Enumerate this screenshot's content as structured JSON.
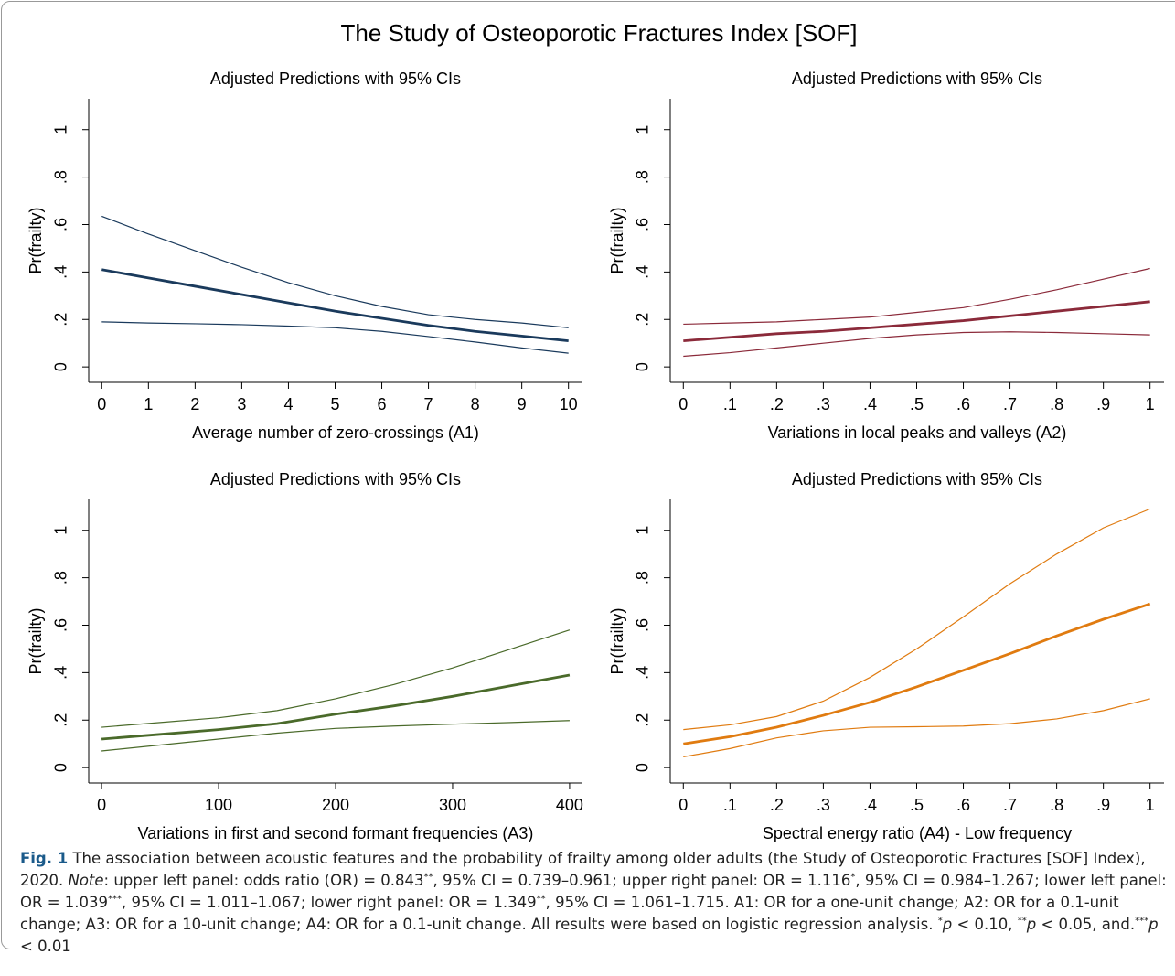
{
  "figure_title": "The Study of Osteoporotic Fractures Index [SOF]",
  "chart_data": [
    {
      "type": "line",
      "title": "Adjusted Predictions with 95% CIs",
      "x_label": "Average number of zero-crossings (A1)",
      "y_label": "Pr(frailty)",
      "x": [
        0,
        1,
        2,
        3,
        4,
        5,
        6,
        7,
        8,
        9,
        10
      ],
      "series": [
        {
          "color": "#1a3a5c",
          "line_width": 1.2,
          "values": [
            0.635,
            0.56,
            0.49,
            0.42,
            0.355,
            0.3,
            0.255,
            0.22,
            0.2,
            0.185,
            0.165
          ]
        },
        {
          "color": "#1a3a5c",
          "line_width": 2.8,
          "values": [
            0.41,
            0.375,
            0.34,
            0.305,
            0.27,
            0.235,
            0.205,
            0.175,
            0.15,
            0.13,
            0.11
          ]
        },
        {
          "color": "#1a3a5c",
          "line_width": 1.2,
          "values": [
            0.19,
            0.185,
            0.182,
            0.178,
            0.172,
            0.165,
            0.15,
            0.128,
            0.105,
            0.08,
            0.058
          ]
        }
      ],
      "xlim": [
        -0.28,
        10.3
      ],
      "ylim": [
        -0.065,
        1.13
      ],
      "xticks": [
        0,
        1,
        2,
        3,
        4,
        5,
        6,
        7,
        8,
        9,
        10
      ],
      "yticks": [
        0,
        {
          "value": 0.2,
          "label": ".2"
        },
        {
          "value": 0.4,
          "label": ".4"
        },
        {
          "value": 0.6,
          "label": ".6"
        },
        {
          "value": 0.8,
          "label": ".8"
        },
        1
      ]
    },
    {
      "type": "line",
      "title": "Adjusted Predictions with 95% CIs",
      "x_label": "Variations in local peaks and valleys (A2)",
      "y_label": "Pr(frailty)",
      "x": [
        0,
        0.1,
        0.2,
        0.3,
        0.4,
        0.5,
        0.6,
        0.7,
        0.8,
        0.9,
        1
      ],
      "series": [
        {
          "color": "#8b2a3a",
          "line_width": 1.2,
          "values": [
            0.18,
            0.185,
            0.19,
            0.2,
            0.21,
            0.23,
            0.25,
            0.285,
            0.325,
            0.37,
            0.415
          ]
        },
        {
          "color": "#8b2a3a",
          "line_width": 2.8,
          "values": [
            0.11,
            0.125,
            0.14,
            0.15,
            0.165,
            0.18,
            0.195,
            0.215,
            0.235,
            0.255,
            0.275
          ]
        },
        {
          "color": "#8b2a3a",
          "line_width": 1.2,
          "values": [
            0.045,
            0.06,
            0.08,
            0.1,
            0.12,
            0.135,
            0.145,
            0.148,
            0.145,
            0.14,
            0.135
          ]
        }
      ],
      "xlim": [
        -0.028,
        1.03
      ],
      "ylim": [
        -0.065,
        1.13
      ],
      "xticks": [
        0,
        {
          "value": 0.1,
          "label": ".1"
        },
        {
          "value": 0.2,
          "label": ".2"
        },
        {
          "value": 0.3,
          "label": ".3"
        },
        {
          "value": 0.4,
          "label": ".4"
        },
        {
          "value": 0.5,
          "label": ".5"
        },
        {
          "value": 0.6,
          "label": ".6"
        },
        {
          "value": 0.7,
          "label": ".7"
        },
        {
          "value": 0.8,
          "label": ".8"
        },
        {
          "value": 0.9,
          "label": ".9"
        },
        1
      ],
      "yticks": [
        0,
        {
          "value": 0.2,
          "label": ".2"
        },
        {
          "value": 0.4,
          "label": ".4"
        },
        {
          "value": 0.6,
          "label": ".6"
        },
        {
          "value": 0.8,
          "label": ".8"
        },
        1
      ]
    },
    {
      "type": "line",
      "title": "Adjusted Predictions with 95% CIs",
      "x_label": "Variations in first and second formant frequencies (A3)",
      "y_label": "Pr(frailty)",
      "x": [
        0,
        50,
        100,
        150,
        200,
        250,
        300,
        350,
        400
      ],
      "series": [
        {
          "color": "#4a6a2a",
          "line_width": 1.2,
          "values": [
            0.17,
            0.19,
            0.21,
            0.24,
            0.29,
            0.35,
            0.42,
            0.5,
            0.58
          ]
        },
        {
          "color": "#4a6a2a",
          "line_width": 2.8,
          "values": [
            0.12,
            0.14,
            0.16,
            0.185,
            0.225,
            0.26,
            0.3,
            0.345,
            0.39
          ]
        },
        {
          "color": "#4a6a2a",
          "line_width": 1.2,
          "values": [
            0.07,
            0.095,
            0.12,
            0.145,
            0.165,
            0.175,
            0.183,
            0.19,
            0.198
          ]
        }
      ],
      "xlim": [
        -11,
        411
      ],
      "ylim": [
        -0.065,
        1.13
      ],
      "xticks": [
        0,
        100,
        200,
        300,
        400
      ],
      "yticks": [
        0,
        {
          "value": 0.2,
          "label": ".2"
        },
        {
          "value": 0.4,
          "label": ".4"
        },
        {
          "value": 0.6,
          "label": ".6"
        },
        {
          "value": 0.8,
          "label": ".8"
        },
        1
      ]
    },
    {
      "type": "line",
      "title": "Adjusted Predictions with 95% CIs",
      "x_label": "Spectral energy ratio (A4) - Low frequency",
      "y_label": "Pr(frailty)",
      "x": [
        0,
        0.1,
        0.2,
        0.3,
        0.4,
        0.5,
        0.6,
        0.7,
        0.8,
        0.9,
        1
      ],
      "series": [
        {
          "color": "#e07b10",
          "line_width": 1.2,
          "values": [
            0.16,
            0.18,
            0.215,
            0.28,
            0.38,
            0.5,
            0.635,
            0.775,
            0.9,
            1.01,
            1.09
          ]
        },
        {
          "color": "#e07b10",
          "line_width": 2.8,
          "values": [
            0.1,
            0.13,
            0.17,
            0.22,
            0.275,
            0.34,
            0.41,
            0.48,
            0.555,
            0.625,
            0.69
          ]
        },
        {
          "color": "#e07b10",
          "line_width": 1.2,
          "values": [
            0.045,
            0.08,
            0.125,
            0.155,
            0.17,
            0.172,
            0.175,
            0.185,
            0.205,
            0.24,
            0.29
          ]
        }
      ],
      "xlim": [
        -0.028,
        1.03
      ],
      "ylim": [
        -0.065,
        1.13
      ],
      "xticks": [
        0,
        {
          "value": 0.1,
          "label": ".1"
        },
        {
          "value": 0.2,
          "label": ".2"
        },
        {
          "value": 0.3,
          "label": ".3"
        },
        {
          "value": 0.4,
          "label": ".4"
        },
        {
          "value": 0.5,
          "label": ".5"
        },
        {
          "value": 0.6,
          "label": ".6"
        },
        {
          "value": 0.7,
          "label": ".7"
        },
        {
          "value": 0.8,
          "label": ".8"
        },
        {
          "value": 0.9,
          "label": ".9"
        },
        1
      ],
      "yticks": [
        0,
        {
          "value": 0.2,
          "label": ".2"
        },
        {
          "value": 0.4,
          "label": ".4"
        },
        {
          "value": 0.6,
          "label": ".6"
        },
        {
          "value": 0.8,
          "label": ".8"
        },
        1
      ]
    }
  ],
  "caption": [
    {
      "text": "Fig. 1",
      "style": "bold"
    },
    {
      "text": "  The association between acoustic features and the probability of frailty among older adults (the Study of Osteoporotic Fractures [SOF] Index), 2020. ",
      "style": "normal"
    },
    {
      "text": "Note",
      "style": "italic"
    },
    {
      "text": ": upper left panel: odds ratio (OR) = 0.843",
      "style": "normal"
    },
    {
      "text": "**",
      "style": "sup"
    },
    {
      "text": ", 95% CI = 0.739–0.961; upper right panel: OR = 1.116",
      "style": "normal"
    },
    {
      "text": "*",
      "style": "sup"
    },
    {
      "text": ", 95% CI = 0.984–1.267; lower left panel: OR = 1.039",
      "style": "normal"
    },
    {
      "text": "***",
      "style": "sup"
    },
    {
      "text": ", 95% CI = 1.011–1.067; lower right panel: OR = 1.349",
      "style": "normal"
    },
    {
      "text": "**",
      "style": "sup"
    },
    {
      "text": ", 95% CI = 1.061–1.715. A1: OR for a one-unit change; A2: OR for a 0.1-unit change; A3: OR for a 10-unit change; A4: OR for a 0.1-unit change. All results were based on logistic regression analysis. ",
      "style": "normal"
    },
    {
      "text": "*",
      "style": "sup"
    },
    {
      "text": "p",
      "style": "italic"
    },
    {
      "text": " < 0.10, ",
      "style": "normal"
    },
    {
      "text": "**",
      "style": "sup"
    },
    {
      "text": "p",
      "style": "italic"
    },
    {
      "text": " < 0.05, and.",
      "style": "normal"
    },
    {
      "text": "***",
      "style": "sup"
    },
    {
      "text": "p",
      "style": "italic"
    },
    {
      "text": " < 0.01",
      "style": "normal"
    }
  ]
}
